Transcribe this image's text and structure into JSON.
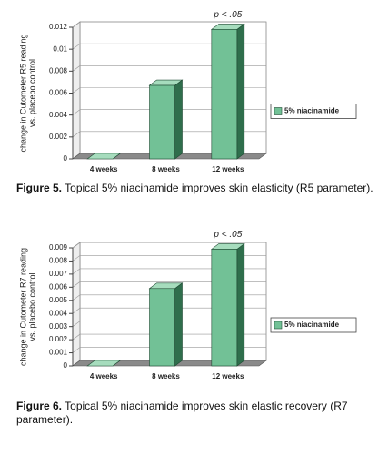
{
  "chart_data": [
    {
      "type": "bar",
      "ylabel": [
        "change in Cutometer R5 reading",
        "vs. placebo control"
      ],
      "categories": [
        "4 weeks",
        "8 weeks",
        "12 weeks"
      ],
      "series": [
        {
          "name": "5% niacinamide",
          "color": "#72c196",
          "values": [
            0,
            0.0067,
            0.0118
          ]
        }
      ],
      "ylim": [
        0,
        0.012
      ],
      "yticks": [
        0,
        0.002,
        0.004,
        0.006,
        0.008,
        0.01,
        0.012
      ],
      "grid": true,
      "annotation": "p < .05",
      "caption_label": "Figure 5.",
      "caption": "Topical 5% niacinamide improves skin elasticity (R5 parameter)."
    },
    {
      "type": "bar",
      "ylabel": [
        "change in Cutometer R7 reading",
        "vs. placebo control"
      ],
      "categories": [
        "4 weeks",
        "8 weeks",
        "12 weeks"
      ],
      "series": [
        {
          "name": "5% niacinamide",
          "color": "#72c196",
          "values": [
            0,
            0.0059,
            0.0089
          ]
        }
      ],
      "ylim": [
        0,
        0.009
      ],
      "yticks": [
        0,
        0.001,
        0.002,
        0.003,
        0.004,
        0.005,
        0.006,
        0.007,
        0.008,
        0.009
      ],
      "grid": true,
      "annotation": "p < .05",
      "caption_label": "Figure 6.",
      "caption": "Topical 5% niacinamide improves skin elastic recovery (R7 parameter)."
    }
  ]
}
